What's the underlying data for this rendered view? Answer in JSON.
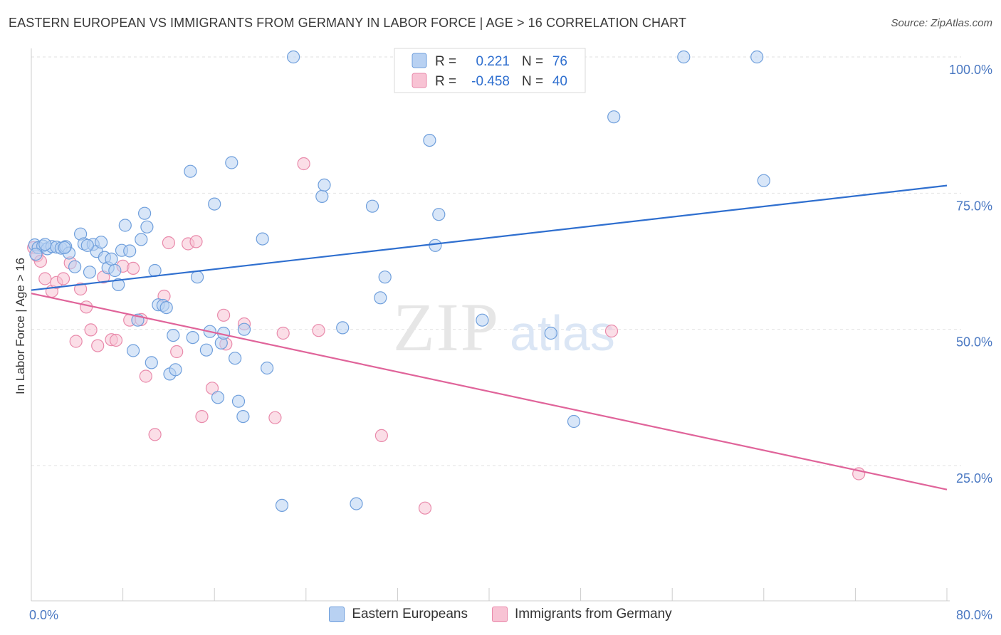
{
  "title": "EASTERN EUROPEAN VS IMMIGRANTS FROM GERMANY IN LABOR FORCE | AGE > 16 CORRELATION CHART",
  "source": "Source: ZipAtlas.com",
  "watermark": {
    "zip": "ZIP",
    "atlas": "atlas"
  },
  "colors": {
    "blue_fill": "#b8d1f2",
    "blue_stroke": "#6f9fdc",
    "blue_line": "#2f6fcf",
    "pink_fill": "#f8c3d4",
    "pink_stroke": "#e98aab",
    "pink_line": "#e0649a",
    "tick_text": "#4a78c2",
    "grid": "#e2e2e2"
  },
  "legend": {
    "rows": [
      {
        "r_label": "R =",
        "r_value": "0.221",
        "n_label": "N =",
        "n_value": "76"
      },
      {
        "r_label": "R =",
        "r_value": "-0.458",
        "n_label": "N =",
        "n_value": "40"
      }
    ]
  },
  "chart_data": {
    "type": "scatter",
    "title": "EASTERN EUROPEAN VS IMMIGRANTS FROM GERMANY IN LABOR FORCE | AGE > 16 CORRELATION CHART",
    "xlabel": "",
    "ylabel": "In Labor Force | Age > 16",
    "xlim": [
      0,
      80
    ],
    "ylim": [
      0,
      105
    ],
    "x_tick_labels": [
      {
        "value": 0,
        "label": "0.0%"
      },
      {
        "value": 80,
        "label": "80.0%"
      }
    ],
    "y_tick_labels": [
      {
        "value": 25,
        "label": "25.0%"
      },
      {
        "value": 50,
        "label": "50.0%"
      },
      {
        "value": 75,
        "label": "75.0%"
      },
      {
        "value": 100,
        "label": "100.0%"
      }
    ],
    "grid": true,
    "legend_position": "top-center",
    "series": [
      {
        "name": "Eastern Europeans",
        "color": "#6f9fdc",
        "trend": {
          "x": [
            0,
            80
          ],
          "y": [
            57.2,
            76.4
          ]
        },
        "points": [
          [
            0.3,
            65.5
          ],
          [
            0.6,
            65.0
          ],
          [
            1.0,
            65.3
          ],
          [
            1.4,
            64.8
          ],
          [
            1.8,
            65.2
          ],
          [
            2.2,
            65.1
          ],
          [
            2.6,
            64.9
          ],
          [
            3.0,
            65.2
          ],
          [
            3.3,
            64.0
          ],
          [
            3.8,
            61.5
          ],
          [
            4.3,
            67.5
          ],
          [
            4.6,
            65.7
          ],
          [
            5.1,
            60.5
          ],
          [
            5.4,
            65.6
          ],
          [
            5.7,
            64.3
          ],
          [
            6.1,
            66.0
          ],
          [
            6.4,
            63.2
          ],
          [
            6.7,
            61.3
          ],
          [
            7.0,
            62.9
          ],
          [
            7.3,
            60.8
          ],
          [
            7.6,
            58.2
          ],
          [
            7.9,
            64.5
          ],
          [
            8.2,
            69.1
          ],
          [
            8.6,
            64.4
          ],
          [
            8.9,
            46.1
          ],
          [
            9.3,
            51.7
          ],
          [
            9.6,
            66.5
          ],
          [
            9.9,
            71.3
          ],
          [
            10.1,
            68.8
          ],
          [
            10.5,
            43.9
          ],
          [
            10.8,
            60.8
          ],
          [
            11.1,
            54.5
          ],
          [
            11.5,
            54.4
          ],
          [
            11.8,
            54.0
          ],
          [
            12.1,
            41.8
          ],
          [
            12.4,
            48.9
          ],
          [
            12.6,
            42.6
          ],
          [
            13.9,
            79.0
          ],
          [
            14.1,
            48.5
          ],
          [
            14.5,
            59.6
          ],
          [
            15.3,
            46.2
          ],
          [
            15.6,
            49.6
          ],
          [
            16.0,
            73.0
          ],
          [
            16.3,
            37.5
          ],
          [
            16.6,
            47.5
          ],
          [
            16.8,
            49.3
          ],
          [
            17.5,
            80.6
          ],
          [
            17.8,
            44.7
          ],
          [
            18.1,
            36.8
          ],
          [
            18.5,
            34.0
          ],
          [
            18.6,
            50.0
          ],
          [
            20.2,
            66.6
          ],
          [
            20.6,
            42.9
          ],
          [
            21.9,
            17.7
          ],
          [
            22.9,
            100.0
          ],
          [
            25.4,
            74.4
          ],
          [
            25.6,
            76.5
          ],
          [
            27.2,
            50.3
          ],
          [
            28.4,
            18.0
          ],
          [
            29.8,
            72.6
          ],
          [
            30.5,
            55.8
          ],
          [
            30.9,
            59.6
          ],
          [
            34.8,
            84.7
          ],
          [
            35.3,
            65.4
          ],
          [
            35.6,
            71.1
          ],
          [
            39.4,
            51.7
          ],
          [
            45.4,
            49.3
          ],
          [
            47.4,
            33.1
          ],
          [
            50.9,
            89.0
          ],
          [
            57.0,
            100.0
          ],
          [
            63.4,
            100.0
          ],
          [
            64.0,
            77.3
          ],
          [
            0.4,
            63.8
          ],
          [
            1.2,
            65.6
          ],
          [
            2.9,
            65.0
          ],
          [
            4.9,
            65.4
          ]
        ]
      },
      {
        "name": "Immigrants from Germany",
        "color": "#e98aab",
        "trend": {
          "x": [
            0,
            80
          ],
          "y": [
            56.6,
            20.6
          ]
        },
        "points": [
          [
            0.2,
            65.0
          ],
          [
            0.5,
            63.5
          ],
          [
            0.8,
            62.5
          ],
          [
            1.2,
            59.3
          ],
          [
            1.8,
            57.0
          ],
          [
            2.2,
            58.6
          ],
          [
            2.8,
            59.3
          ],
          [
            3.4,
            62.2
          ],
          [
            3.9,
            47.8
          ],
          [
            4.3,
            57.4
          ],
          [
            4.8,
            54.1
          ],
          [
            5.2,
            49.9
          ],
          [
            5.8,
            47.0
          ],
          [
            6.3,
            59.6
          ],
          [
            7.0,
            48.1
          ],
          [
            7.4,
            48.0
          ],
          [
            8.0,
            61.6
          ],
          [
            8.6,
            51.7
          ],
          [
            8.9,
            61.2
          ],
          [
            9.6,
            51.8
          ],
          [
            10.0,
            41.4
          ],
          [
            10.8,
            30.7
          ],
          [
            11.6,
            56.1
          ],
          [
            12.0,
            65.9
          ],
          [
            12.7,
            45.9
          ],
          [
            13.7,
            65.7
          ],
          [
            14.4,
            66.1
          ],
          [
            14.9,
            34.0
          ],
          [
            15.8,
            39.2
          ],
          [
            16.8,
            52.6
          ],
          [
            17.0,
            47.3
          ],
          [
            18.6,
            51.0
          ],
          [
            21.3,
            33.8
          ],
          [
            22.0,
            49.3
          ],
          [
            23.8,
            80.4
          ],
          [
            25.1,
            49.8
          ],
          [
            30.6,
            30.5
          ],
          [
            34.4,
            17.2
          ],
          [
            50.7,
            49.7
          ],
          [
            72.3,
            23.5
          ]
        ]
      }
    ]
  }
}
